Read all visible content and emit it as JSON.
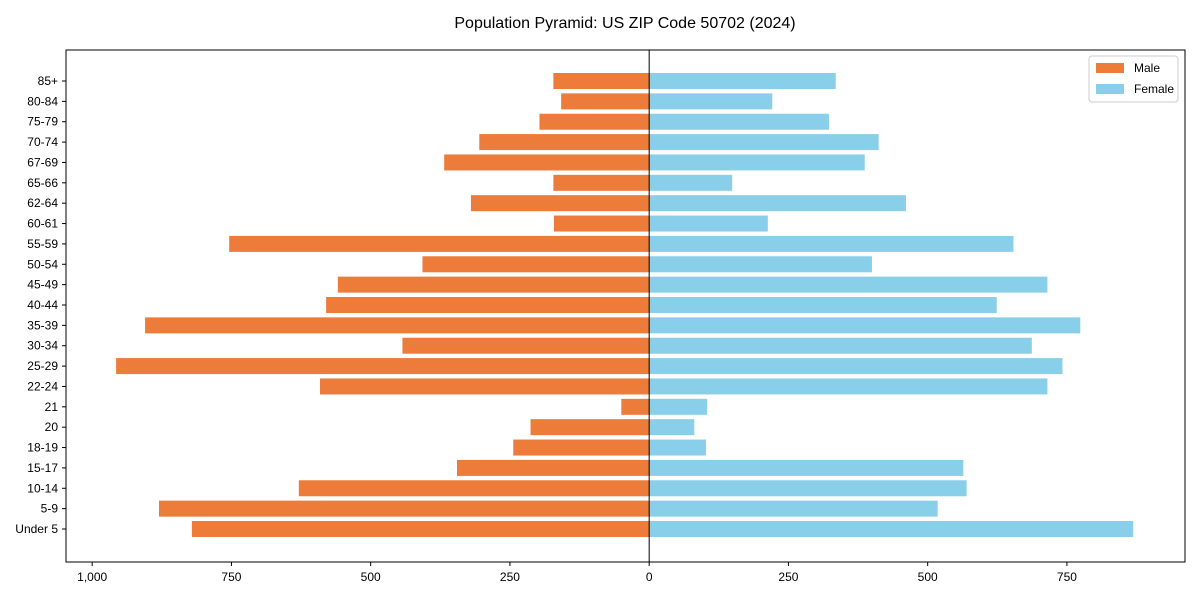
{
  "chart_data": {
    "type": "bar",
    "orientation": "horizontal",
    "title": "Population Pyramid: US ZIP Code 50702 (2024)",
    "xlabel": "",
    "ylabel": "",
    "categories": [
      "Under 5",
      "5-9",
      "10-14",
      "15-17",
      "18-19",
      "20",
      "21",
      "22-24",
      "25-29",
      "30-34",
      "35-39",
      "40-44",
      "45-49",
      "50-54",
      "55-59",
      "60-61",
      "62-64",
      "65-66",
      "67-69",
      "70-74",
      "75-79",
      "80-84",
      "85+"
    ],
    "series": [
      {
        "name": "Male",
        "color": "#ED7B3A",
        "side": "left",
        "values": [
          821,
          880,
          629,
          345,
          244,
          213,
          50,
          591,
          957,
          443,
          905,
          580,
          559,
          407,
          754,
          171,
          320,
          172,
          368,
          305,
          197,
          158,
          172
        ]
      },
      {
        "name": "Female",
        "color": "#89CFEA",
        "side": "right",
        "values": [
          869,
          518,
          570,
          564,
          102,
          81,
          104,
          715,
          742,
          687,
          774,
          624,
          715,
          400,
          654,
          213,
          461,
          149,
          387,
          412,
          323,
          221,
          335
        ]
      }
    ],
    "xlim": [
      -1047,
      962
    ],
    "xticks": [
      -1000,
      -750,
      -500,
      -250,
      0,
      250,
      500,
      750
    ],
    "xtick_labels": [
      "1,000",
      "750",
      "500",
      "250",
      "0",
      "250",
      "500",
      "750"
    ],
    "grid": false,
    "legend": {
      "placement": "top-right",
      "entries": [
        "Male",
        "Female"
      ]
    }
  }
}
